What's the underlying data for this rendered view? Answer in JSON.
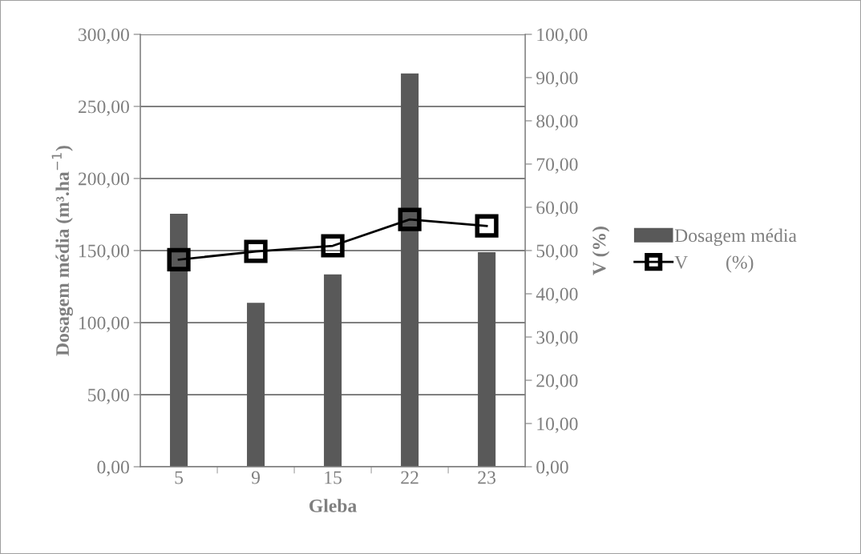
{
  "chart_data": {
    "type": "bar",
    "categories": [
      "5",
      "9",
      "15",
      "22",
      "23"
    ],
    "xlabel": "Gleba",
    "ylabel": "Dosagem média (m³.ha$^{−1}$)",
    "y2label": "V (%)",
    "series": [
      {
        "name": "Dosagem média",
        "color": "#595959",
        "values": [
          175.5,
          113.8,
          133.4,
          272.9,
          148.8
        ]
      },
      {
        "name": "V        (%)",
        "type": "line",
        "axis": "y2",
        "color": "#000000",
        "marker": "square",
        "values": [
          47.9,
          49.8,
          51.1,
          57.2,
          55.7
        ]
      }
    ],
    "ylim": [
      0,
      300
    ],
    "yticks": [
      {
        "value": 0,
        "label": "0,00"
      },
      {
        "value": 50,
        "label": "50,00"
      },
      {
        "value": 100,
        "label": "100,00"
      },
      {
        "value": 150,
        "label": "150,00"
      },
      {
        "value": 200,
        "label": "200,00"
      },
      {
        "value": 250,
        "label": "250,00"
      },
      {
        "value": 300,
        "label": "300,00"
      }
    ],
    "y2lim": [
      0,
      100
    ],
    "y2ticks": [
      {
        "value": 0,
        "label": "0,00"
      },
      {
        "value": 10,
        "label": "10,00"
      },
      {
        "value": 20,
        "label": "20,00"
      },
      {
        "value": 30,
        "label": "30,00"
      },
      {
        "value": 40,
        "label": "40,00"
      },
      {
        "value": 50,
        "label": "50,00"
      },
      {
        "value": 60,
        "label": "60,00"
      },
      {
        "value": 70,
        "label": "70,00"
      },
      {
        "value": 80,
        "label": "80,00"
      },
      {
        "value": 90,
        "label": "90,00"
      },
      {
        "value": 100,
        "label": "100,00"
      }
    ],
    "grid": "y",
    "legend": "right"
  }
}
